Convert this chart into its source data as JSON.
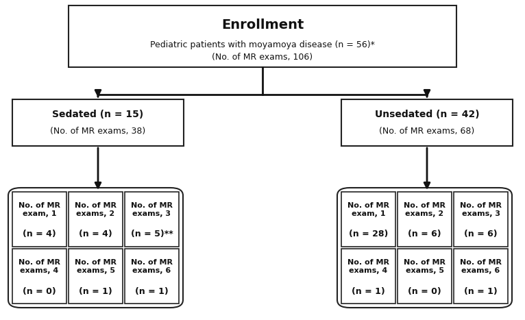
{
  "title": "Enrollment",
  "enrollment_line1": "Pediatric patients with moyamoya disease (n = 56)*",
  "enrollment_line2": "(No. of MR exams, 106)",
  "sedated_line1": "Sedated (n = 15)",
  "sedated_line2": "(No. of MR exams, 38)",
  "unsedated_line1": "Unsedated (n = 42)",
  "unsedated_line2": "(No. of MR exams, 68)",
  "sedated_cells": [
    [
      "No. of MR\nexam, 1",
      "(n = 4)"
    ],
    [
      "No. of MR\nexams, 2",
      "(n = 4)"
    ],
    [
      "No. of MR\nexams, 3",
      "(n = 5)**"
    ],
    [
      "No. of MR\nexams, 4",
      "(n = 0)"
    ],
    [
      "No. of MR\nexams, 5",
      "(n = 1)"
    ],
    [
      "No. of MR\nexams, 6",
      "(n = 1)"
    ]
  ],
  "unsedated_cells": [
    [
      "No. of MR\nexam, 1",
      "(n = 28)"
    ],
    [
      "No. of MR\nexams, 2",
      "(n = 6)"
    ],
    [
      "No. of MR\nexams, 3",
      "(n = 6)"
    ],
    [
      "No. of MR\nexams, 4",
      "(n = 1)"
    ],
    [
      "No. of MR\nexams, 5",
      "(n = 0)"
    ],
    [
      "No. of MR\nexams, 6",
      "(n = 1)"
    ]
  ]
}
